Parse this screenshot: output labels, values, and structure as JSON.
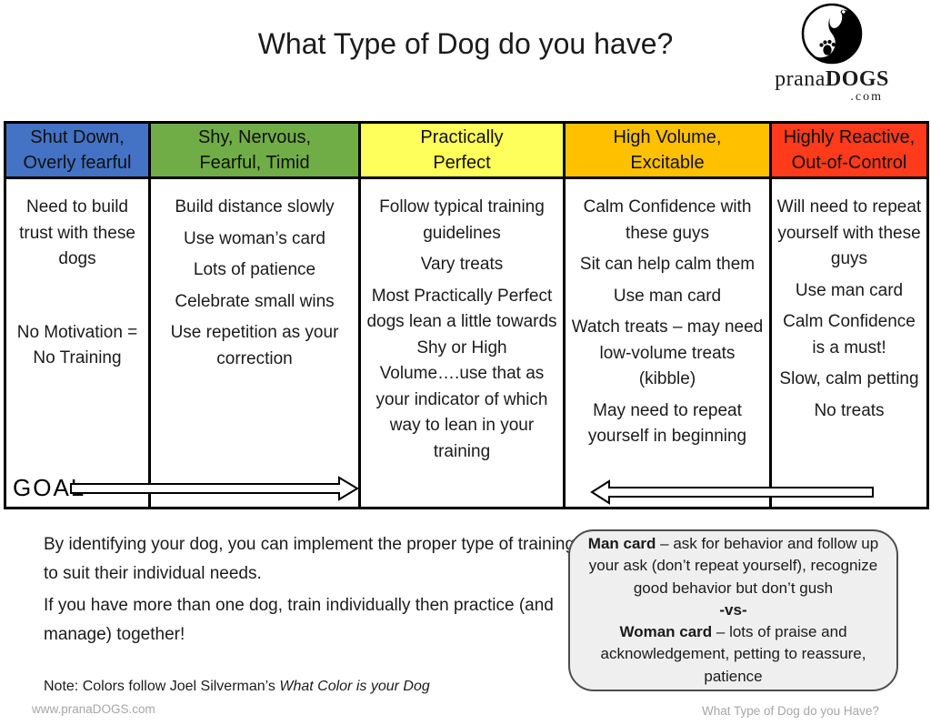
{
  "title": "What Type of Dog do you have?",
  "logo": {
    "brand_prefix": "prana",
    "brand_suffix": "DOGS",
    "domain": ".com",
    "icon": "yin-yang-foot-paw"
  },
  "table": {
    "goal_label": "GOAL",
    "columns": [
      {
        "id": "shut-down",
        "color": "#4472C4",
        "header_line1": "Shut Down,",
        "header_line2": "Overly fearful",
        "items": [
          "Need to build trust with these dogs",
          "No Motivation = No Training"
        ]
      },
      {
        "id": "shy-nervous",
        "color": "#70AD47",
        "header_line1": "Shy, Nervous,",
        "header_line2": "Fearful, Timid",
        "items": [
          "Build distance slowly",
          "Use woman’s card",
          "Lots of patience",
          "Celebrate small wins",
          "Use repetition as your correction"
        ]
      },
      {
        "id": "practically-perfect",
        "color": "#FFFF5B",
        "header_line1": "Practically",
        "header_line2": "Perfect",
        "items": [
          "Follow typical training guidelines",
          "Vary treats",
          "Most Practically Perfect dogs lean a little towards Shy or High Volume….use that as your indicator of which way to lean in your training"
        ]
      },
      {
        "id": "high-volume",
        "color": "#FFC000",
        "header_line1": "High Volume,",
        "header_line2": "Excitable",
        "items": [
          "Calm Confidence with these guys",
          "Sit can help calm them",
          "Use man card",
          "Watch treats – may need low-volume treats (kibble)",
          "May need to repeat yourself in beginning"
        ]
      },
      {
        "id": "highly-reactive",
        "color": "#FF3B1C",
        "header_line1": "Highly Reactive,",
        "header_line2": "Out-of-Control",
        "items": [
          "Will need to repeat yourself with these guys",
          "Use man card",
          "Calm Confidence is a must!",
          "Slow, calm petting",
          "No treats"
        ]
      }
    ]
  },
  "body_text": {
    "para1": "By identifying your dog, you can implement the proper type of training to suit their individual needs.",
    "para2": "If you have more than one dog, train individually then practice (and manage) together!",
    "note_prefix": "Note: Colors follow Joel Silverman’s ",
    "note_title_italic": "What Color is your Dog"
  },
  "card_box": {
    "man_label": "Man card",
    "man_text": " – ask for behavior and follow up your ask (don’t repeat yourself), recognize good behavior but don’t gush",
    "vs_label": "-vs-",
    "woman_label": "Woman card",
    "woman_text": " – lots of praise and acknowledgement, petting to reassure, patience"
  },
  "footer": {
    "left": "www.pranaDOGS.com",
    "right": "What Type of Dog do you Have?"
  }
}
